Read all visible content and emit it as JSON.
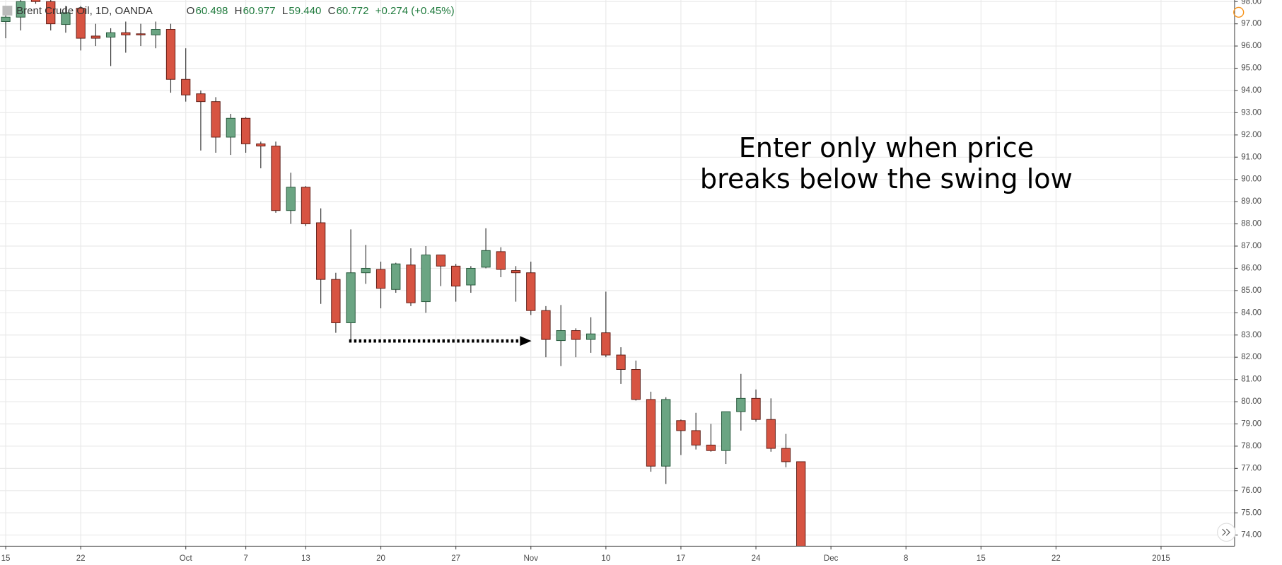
{
  "chart_data": {
    "type": "candlestick",
    "header": {
      "symbol": "Brent Crude Oil, 1D, OANDA",
      "ohlc": [
        {
          "label": "O",
          "value": 60.498
        },
        {
          "label": "H",
          "value": 60.977
        },
        {
          "label": "L",
          "value": 59.44
        },
        {
          "label": "C",
          "value": 60.772
        }
      ],
      "change": "+0.274 (+0.45%)"
    },
    "annotation": [
      "Enter only when price",
      "breaks below the swing low"
    ],
    "up_color": "#6ba583",
    "down_color": "#d75442",
    "open": [
      97.1,
      97.3,
      98.1,
      98.0,
      96.97,
      97.7,
      96.45,
      96.4,
      96.6,
      96.55,
      96.5,
      96.75,
      94.5,
      93.85,
      93.5,
      91.9,
      92.75,
      91.6,
      91.5,
      88.6,
      89.65,
      88.05,
      85.5,
      83.55,
      85.8,
      85.95,
      85.05,
      86.15,
      84.5,
      86.6,
      86.1,
      85.25,
      86.05,
      86.75,
      85.9,
      85.8,
      84.1,
      82.75,
      83.2,
      82.8,
      83.1,
      82.1,
      81.45,
      80.1,
      77.1,
      79.15,
      78.7,
      78.05,
      77.8,
      79.55,
      80.15,
      79.2,
      77.9,
      77.3
    ],
    "high": [
      97.8,
      98.2,
      98.2,
      98.1,
      97.8,
      97.8,
      97.0,
      96.8,
      97.1,
      97.0,
      97.1,
      97.0,
      95.9,
      94.0,
      93.7,
      92.95,
      92.8,
      91.7,
      91.7,
      90.3,
      89.7,
      88.7,
      85.8,
      87.75,
      87.05,
      86.3,
      86.25,
      86.9,
      87.0,
      86.6,
      86.2,
      86.1,
      87.8,
      86.95,
      86.1,
      86.3,
      84.3,
      84.35,
      83.3,
      83.8,
      84.95,
      82.45,
      81.85,
      80.45,
      80.2,
      79.2,
      79.5,
      79.0,
      79.55,
      81.25,
      80.55,
      80.15,
      78.55,
      77.3
    ],
    "low": [
      96.35,
      96.7,
      97.9,
      96.7,
      96.6,
      95.8,
      96.0,
      95.1,
      95.7,
      96.0,
      95.9,
      93.9,
      93.5,
      91.3,
      91.2,
      91.1,
      91.2,
      90.5,
      88.5,
      88.0,
      87.9,
      84.4,
      83.1,
      82.8,
      85.3,
      84.2,
      84.9,
      84.3,
      84.0,
      85.2,
      84.5,
      84.9,
      86.0,
      85.6,
      84.5,
      83.9,
      82.0,
      81.6,
      82.0,
      82.2,
      82.0,
      80.8,
      80.05,
      76.85,
      76.3,
      77.6,
      77.85,
      77.75,
      77.2,
      78.7,
      79.1,
      77.75,
      77.05,
      73.4
    ],
    "close": [
      97.3,
      98.0,
      98.0,
      97.0,
      97.5,
      96.35,
      96.35,
      96.6,
      96.5,
      96.5,
      96.75,
      94.5,
      93.8,
      93.5,
      91.9,
      92.75,
      91.6,
      91.5,
      88.6,
      89.65,
      88.0,
      85.5,
      83.55,
      85.8,
      86.0,
      85.1,
      86.2,
      84.45,
      86.6,
      86.1,
      85.2,
      86.0,
      86.8,
      85.95,
      85.8,
      84.1,
      82.8,
      83.2,
      82.8,
      83.05,
      82.1,
      81.45,
      80.1,
      77.1,
      80.1,
      78.7,
      78.05,
      77.8,
      79.55,
      80.15,
      79.2,
      77.9,
      77.3,
      73.45
    ],
    "xlim": [
      -0.38,
      81.9
    ],
    "xticks": [
      {
        "value": 0,
        "label": "15"
      },
      {
        "value": 5,
        "label": "22"
      },
      {
        "value": 12,
        "label": "Oct"
      },
      {
        "value": 16,
        "label": "7"
      },
      {
        "value": 20,
        "label": "13"
      },
      {
        "value": 25,
        "label": "20"
      },
      {
        "value": 30,
        "label": "27"
      },
      {
        "value": 35,
        "label": "Nov"
      },
      {
        "value": 40,
        "label": "10"
      },
      {
        "value": 45,
        "label": "17"
      },
      {
        "value": 50,
        "label": "24"
      },
      {
        "value": 55,
        "label": "Dec"
      },
      {
        "value": 60,
        "label": "8"
      },
      {
        "value": 65,
        "label": "15"
      },
      {
        "value": 70,
        "label": "22"
      },
      {
        "value": 77,
        "label": "2015"
      }
    ],
    "ylim": [
      73.5,
      98.07
    ],
    "yticks": [
      {
        "value": 74,
        "label": "74.00"
      },
      {
        "value": 75,
        "label": "75.00"
      },
      {
        "value": 76,
        "label": "76.00"
      },
      {
        "value": 77,
        "label": "77.00"
      },
      {
        "value": 78,
        "label": "78.00"
      },
      {
        "value": 79,
        "label": "79.00"
      },
      {
        "value": 80,
        "label": "80.00"
      },
      {
        "value": 81,
        "label": "81.00"
      },
      {
        "value": 82,
        "label": "82.00"
      },
      {
        "value": 83,
        "label": "83.00"
      },
      {
        "value": 84,
        "label": "84.00"
      },
      {
        "value": 85,
        "label": "85.00"
      },
      {
        "value": 86,
        "label": "86.00"
      },
      {
        "value": 87,
        "label": "87.00"
      },
      {
        "value": 88,
        "label": "88.00"
      },
      {
        "value": 89,
        "label": "89.00"
      },
      {
        "value": 90,
        "label": "90.00"
      },
      {
        "value": 91,
        "label": "91.00"
      },
      {
        "value": 92,
        "label": "92.00"
      },
      {
        "value": 93,
        "label": "93.00"
      },
      {
        "value": 94,
        "label": "94.00"
      },
      {
        "value": 95,
        "label": "95.00"
      },
      {
        "value": 96,
        "label": "96.00"
      },
      {
        "value": 97,
        "label": "97.00"
      },
      {
        "value": 98,
        "label": "98.00"
      }
    ],
    "grid": true
  }
}
